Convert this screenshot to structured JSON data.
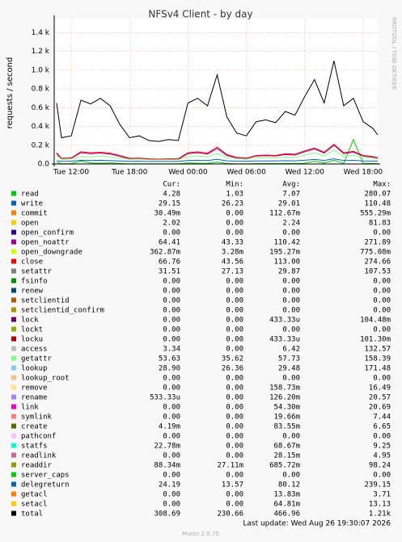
{
  "chart_data": {
    "type": "line",
    "title": "NFSv4 Client - by day",
    "y_label": "requests / second",
    "watermark": "RRDTOOL / TOBI OETIKER",
    "xlim": [
      10.25,
      43.5
    ],
    "xticks": [
      {
        "value": 12,
        "label": "Tue 12:00"
      },
      {
        "value": 18,
        "label": "Tue 18:00"
      },
      {
        "value": 24,
        "label": "Wed 00:00"
      },
      {
        "value": 30,
        "label": "Wed 06:00"
      },
      {
        "value": 36,
        "label": "Wed 12:00"
      },
      {
        "value": 42,
        "label": "Wed 18:00"
      }
    ],
    "ylim": [
      0,
      1550
    ],
    "yticks": [
      {
        "value": 0,
        "label": "0.0"
      },
      {
        "value": 200,
        "label": "0.2 k"
      },
      {
        "value": 400,
        "label": "0.4 k"
      },
      {
        "value": 600,
        "label": "0.6 k"
      },
      {
        "value": 800,
        "label": "0.8 k"
      },
      {
        "value": 1000,
        "label": "1.0 k"
      },
      {
        "value": 1200,
        "label": "1.2 k"
      },
      {
        "value": 1400,
        "label": "1.4 k"
      }
    ],
    "grid": true,
    "x": [
      10.5,
      11,
      12,
      13,
      14,
      15,
      16,
      17,
      18,
      19,
      20,
      21,
      22,
      23,
      24,
      25,
      26,
      27,
      28,
      29,
      30,
      31,
      32,
      33,
      34,
      35,
      36,
      37,
      38,
      39,
      40,
      41,
      42,
      43,
      43.5
    ],
    "stat_headers": [
      "Cur:",
      "Min:",
      "Avg:",
      "Max:"
    ],
    "series": [
      {
        "name": "read",
        "color": "#00cc00",
        "stats": [
          "4.28",
          "1.03",
          "7.07",
          "280.07"
        ],
        "values": [
          20,
          3,
          4,
          30,
          10,
          8,
          12,
          5,
          3,
          3,
          2,
          2,
          2,
          2,
          10,
          8,
          6,
          20,
          5,
          3,
          3,
          4,
          5,
          4,
          6,
          5,
          8,
          30,
          10,
          40,
          6,
          260,
          8,
          5,
          4
        ]
      },
      {
        "name": "write",
        "color": "#0066b3",
        "stats": [
          "29.15",
          "26.23",
          "29.01",
          "110.48"
        ],
        "values": [
          35,
          28,
          30,
          40,
          38,
          40,
          36,
          32,
          28,
          29,
          27,
          27,
          27,
          27,
          38,
          40,
          36,
          50,
          34,
          30,
          29,
          32,
          33,
          32,
          35,
          34,
          40,
          48,
          38,
          55,
          36,
          40,
          33,
          31,
          29
        ]
      },
      {
        "name": "commit",
        "color": "#ff8000",
        "stats": [
          "30.49m",
          "0.00",
          "112.67m",
          "555.29m"
        ]
      },
      {
        "name": "open",
        "color": "#ffcc00",
        "stats": [
          "2.02",
          "0.00",
          "2.24",
          "81.83"
        ]
      },
      {
        "name": "open_confirm",
        "color": "#330099",
        "stats": [
          "0.00",
          "0.00",
          "0.00",
          "0.00"
        ]
      },
      {
        "name": "open_noattr",
        "color": "#990099",
        "stats": [
          "64.41",
          "43.33",
          "110.42",
          "271.89"
        ],
        "values": [
          110,
          55,
          60,
          120,
          110,
          115,
          105,
          80,
          55,
          58,
          50,
          48,
          50,
          50,
          110,
          120,
          105,
          165,
          90,
          65,
          58,
          85,
          88,
          85,
          100,
          95,
          130,
          160,
          115,
          200,
          110,
          125,
          85,
          72,
          64
        ]
      },
      {
        "name": "open_downgrade",
        "color": "#ccff00",
        "stats": [
          "362.87m",
          "3.28m",
          "195.27m",
          "775.08m"
        ]
      },
      {
        "name": "close",
        "color": "#ff0000",
        "stats": [
          "66.76",
          "43.56",
          "113.00",
          "274.66"
        ],
        "values": [
          120,
          60,
          65,
          130,
          120,
          125,
          115,
          90,
          60,
          62,
          55,
          52,
          55,
          55,
          120,
          130,
          115,
          180,
          100,
          70,
          62,
          90,
          95,
          90,
          110,
          105,
          140,
          170,
          125,
          210,
          120,
          135,
          90,
          78,
          67
        ]
      },
      {
        "name": "setattr",
        "color": "#808080",
        "stats": [
          "31.51",
          "27.13",
          "29.87",
          "107.53"
        ]
      },
      {
        "name": "fsinfo",
        "color": "#008f00",
        "stats": [
          "0.00",
          "0.00",
          "0.00",
          "0.00"
        ]
      },
      {
        "name": "renew",
        "color": "#00487d",
        "stats": [
          "0.00",
          "0.00",
          "0.00",
          "0.00"
        ]
      },
      {
        "name": "setclientid",
        "color": "#b35a00",
        "stats": [
          "0.00",
          "0.00",
          "0.00",
          "0.00"
        ]
      },
      {
        "name": "setclientid_confirm",
        "color": "#b38f00",
        "stats": [
          "0.00",
          "0.00",
          "0.00",
          "0.00"
        ]
      },
      {
        "name": "lock",
        "color": "#6b006b",
        "stats": [
          "0.00",
          "0.00",
          "433.33u",
          "104.48m"
        ]
      },
      {
        "name": "lockt",
        "color": "#8fb300",
        "stats": [
          "0.00",
          "0.00",
          "0.00",
          "0.00"
        ]
      },
      {
        "name": "locku",
        "color": "#b30000",
        "stats": [
          "0.00",
          "0.00",
          "433.33u",
          "101.30m"
        ]
      },
      {
        "name": "access",
        "color": "#bebebe",
        "stats": [
          "3.34",
          "0.00",
          "6.42",
          "132.57"
        ]
      },
      {
        "name": "getattr",
        "color": "#80ff80",
        "stats": [
          "53.63",
          "35.62",
          "57.73",
          "158.39"
        ],
        "values": [
          90,
          50,
          55,
          80,
          75,
          85,
          75,
          65,
          50,
          52,
          45,
          44,
          46,
          45,
          80,
          85,
          75,
          110,
          70,
          55,
          52,
          65,
          68,
          65,
          75,
          72,
          95,
          120,
          85,
          150,
          80,
          95,
          70,
          60,
          54
        ]
      },
      {
        "name": "lookup",
        "color": "#80c9ff",
        "stats": [
          "28.90",
          "26.36",
          "29.48",
          "171.48"
        ]
      },
      {
        "name": "lookup_root",
        "color": "#ffc080",
        "stats": [
          "0.00",
          "0.00",
          "0.00",
          "0.00"
        ]
      },
      {
        "name": "remove",
        "color": "#ffe680",
        "stats": [
          "0.00",
          "0.00",
          "158.73m",
          "16.49"
        ]
      },
      {
        "name": "rename",
        "color": "#aa80ff",
        "stats": [
          "533.33u",
          "0.00",
          "126.20m",
          "20.57"
        ]
      },
      {
        "name": "link",
        "color": "#ee00cc",
        "stats": [
          "0.00",
          "0.00",
          "54.30m",
          "20.69"
        ]
      },
      {
        "name": "symlink",
        "color": "#ff8080",
        "stats": [
          "0.00",
          "0.00",
          "19.66m",
          "7.44"
        ]
      },
      {
        "name": "create",
        "color": "#666600",
        "stats": [
          "4.19m",
          "0.00",
          "83.55m",
          "6.65"
        ]
      },
      {
        "name": "pathconf",
        "color": "#ffbfff",
        "stats": [
          "0.00",
          "0.00",
          "0.00",
          "0.00"
        ]
      },
      {
        "name": "statfs",
        "color": "#00ffcc",
        "stats": [
          "22.78m",
          "0.00",
          "68.67m",
          "9.25"
        ]
      },
      {
        "name": "readlink",
        "color": "#cc6699",
        "stats": [
          "0.00",
          "0.00",
          "28.15m",
          "4.95"
        ]
      },
      {
        "name": "readdir",
        "color": "#999900",
        "stats": [
          "88.34m",
          "27.11m",
          "685.72m",
          "98.24"
        ]
      },
      {
        "name": "server_caps",
        "color": "#00cc00",
        "stats": [
          "0.00",
          "0.00",
          "0.00",
          "0.00"
        ]
      },
      {
        "name": "delegreturn",
        "color": "#0066b3",
        "stats": [
          "24.19",
          "13.57",
          "80.12",
          "239.15"
        ]
      },
      {
        "name": "getacl",
        "color": "#ff8000",
        "stats": [
          "0.00",
          "0.00",
          "13.83m",
          "3.71"
        ]
      },
      {
        "name": "setacl",
        "color": "#ffcc00",
        "stats": [
          "0.00",
          "0.00",
          "64.81m",
          "13.13"
        ]
      },
      {
        "name": "total",
        "color": "#000000",
        "stats": [
          "308.69",
          "230.66",
          "466.96",
          "1.21k"
        ],
        "values": [
          650,
          280,
          300,
          680,
          640,
          700,
          620,
          420,
          280,
          300,
          250,
          240,
          260,
          250,
          650,
          700,
          620,
          950,
          500,
          330,
          300,
          450,
          470,
          440,
          560,
          520,
          720,
          900,
          650,
          1100,
          620,
          700,
          450,
          380,
          310
        ]
      }
    ],
    "last_update": "Last update: Wed Aug 26 19:30:07 2026",
    "footer": "Munin 2.0.75"
  }
}
